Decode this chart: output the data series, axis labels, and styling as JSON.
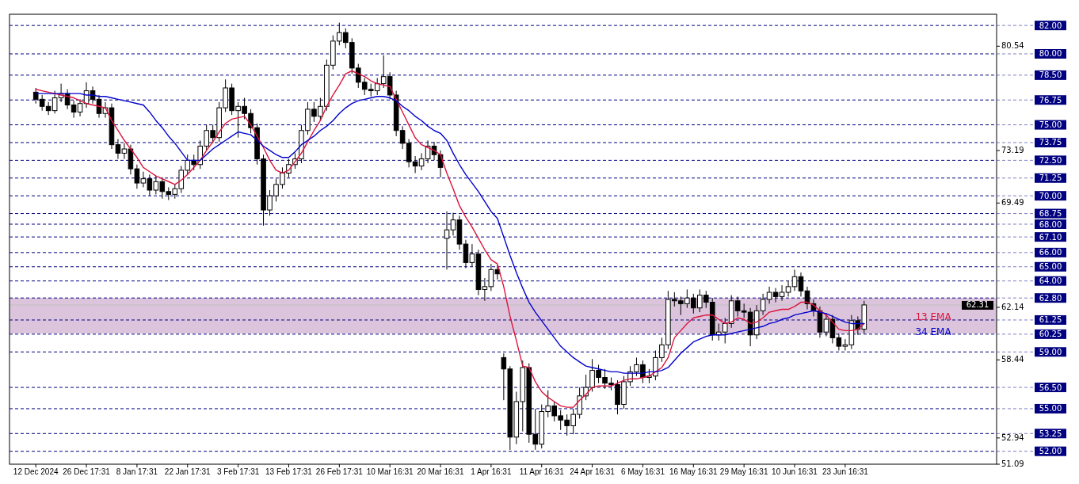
{
  "chart_data": {
    "type": "candlestick",
    "categories": [
      "12 Dec 2024",
      null,
      null,
      null,
      null,
      null,
      null,
      null,
      "26 Dec 17:31",
      null,
      null,
      null,
      null,
      null,
      null,
      null,
      "8 Jan 17:31",
      null,
      null,
      null,
      null,
      null,
      null,
      null,
      "22 Jan 17:31",
      null,
      null,
      null,
      null,
      null,
      null,
      null,
      "3 Feb 17:31",
      null,
      null,
      null,
      null,
      null,
      null,
      null,
      "13 Feb 17:31",
      null,
      null,
      null,
      null,
      null,
      null,
      null,
      "26 Feb 17:31",
      null,
      null,
      null,
      null,
      null,
      null,
      null,
      "10 Mar 16:31",
      null,
      null,
      null,
      null,
      null,
      null,
      null,
      "20 Mar 16:31",
      null,
      null,
      null,
      null,
      null,
      null,
      null,
      "1 Apr 16:31",
      null,
      null,
      null,
      null,
      null,
      null,
      null,
      "11 Apr 16:31",
      null,
      null,
      null,
      null,
      null,
      null,
      null,
      "24 Apr 16:31",
      null,
      null,
      null,
      null,
      null,
      null,
      null,
      "6 May 16:31",
      null,
      null,
      null,
      null,
      null,
      null,
      null,
      "16 May 16:31",
      null,
      null,
      null,
      null,
      null,
      null,
      null,
      "29 May 16:31",
      null,
      null,
      null,
      null,
      null,
      null,
      null,
      "10 Jun 16:31",
      null,
      null,
      null,
      null,
      null,
      null,
      null,
      "23 Jun 16:31",
      null,
      null,
      null
    ],
    "ohlc": [
      [
        77.3,
        77.6,
        76.5,
        76.8
      ],
      [
        76.8,
        77.1,
        76.0,
        76.3
      ],
      [
        76.3,
        76.6,
        75.7,
        76.0
      ],
      [
        76.0,
        77.4,
        75.8,
        76.9
      ],
      [
        76.9,
        77.9,
        76.6,
        77.2
      ],
      [
        77.2,
        77.5,
        76.1,
        76.4
      ],
      [
        76.4,
        76.7,
        75.5,
        75.9
      ],
      [
        75.9,
        76.8,
        75.6,
        76.5
      ],
      [
        76.5,
        78.0,
        76.2,
        77.4
      ],
      [
        77.4,
        77.7,
        76.5,
        76.8
      ],
      [
        76.8,
        77.1,
        75.5,
        75.8
      ],
      [
        75.8,
        76.6,
        75.5,
        76.2
      ],
      [
        76.2,
        76.5,
        73.3,
        73.6
      ],
      [
        73.6,
        74.0,
        72.6,
        73.0
      ],
      [
        73.0,
        73.7,
        72.6,
        73.3
      ],
      [
        73.3,
        73.6,
        71.5,
        71.9
      ],
      [
        71.9,
        72.2,
        70.5,
        70.9
      ],
      [
        70.9,
        71.7,
        70.6,
        71.2
      ],
      [
        71.2,
        71.5,
        70.0,
        70.4
      ],
      [
        70.4,
        71.4,
        70.1,
        71.0
      ],
      [
        71.0,
        71.3,
        69.8,
        70.3
      ],
      [
        70.3,
        70.6,
        69.7,
        70.1
      ],
      [
        70.1,
        70.8,
        69.8,
        70.5
      ],
      [
        70.5,
        72.1,
        70.2,
        71.8
      ],
      [
        71.8,
        72.9,
        71.5,
        72.5
      ],
      [
        72.5,
        72.9,
        71.8,
        72.2
      ],
      [
        72.2,
        73.9,
        71.9,
        73.5
      ],
      [
        73.5,
        75.0,
        73.2,
        74.6
      ],
      [
        74.6,
        75.0,
        73.7,
        74.1
      ],
      [
        74.1,
        76.6,
        73.8,
        76.2
      ],
      [
        76.2,
        78.2,
        75.9,
        77.6
      ],
      [
        77.6,
        77.9,
        75.7,
        76.0
      ],
      [
        76.0,
        76.6,
        74.1,
        76.3
      ],
      [
        76.3,
        76.9,
        75.4,
        75.8
      ],
      [
        75.8,
        76.1,
        74.4,
        74.8
      ],
      [
        74.8,
        75.1,
        72.2,
        72.6
      ],
      [
        72.6,
        72.9,
        67.9,
        69.0
      ],
      [
        69.0,
        70.4,
        68.6,
        70.0
      ],
      [
        70.0,
        71.2,
        69.6,
        70.8
      ],
      [
        70.8,
        72.0,
        70.5,
        71.6
      ],
      [
        71.6,
        72.6,
        71.3,
        72.2
      ],
      [
        72.2,
        73.0,
        71.9,
        72.6
      ],
      [
        72.6,
        75.0,
        72.3,
        74.6
      ],
      [
        74.6,
        76.6,
        74.3,
        76.1
      ],
      [
        76.1,
        76.6,
        75.2,
        75.6
      ],
      [
        75.6,
        76.9,
        75.3,
        76.3
      ],
      [
        76.3,
        79.6,
        76.0,
        79.2
      ],
      [
        79.2,
        81.3,
        78.9,
        80.9
      ],
      [
        80.9,
        82.2,
        80.6,
        81.5
      ],
      [
        81.5,
        81.8,
        80.4,
        80.8
      ],
      [
        80.8,
        81.1,
        78.6,
        79.0
      ],
      [
        79.0,
        79.3,
        77.6,
        78.0
      ],
      [
        78.0,
        78.3,
        77.1,
        77.5
      ],
      [
        77.5,
        77.9,
        77.0,
        77.4
      ],
      [
        77.4,
        78.3,
        77.1,
        77.9
      ],
      [
        77.9,
        79.9,
        77.6,
        78.4
      ],
      [
        78.4,
        78.7,
        76.8,
        77.1
      ],
      [
        77.1,
        77.4,
        74.2,
        74.6
      ],
      [
        74.6,
        74.9,
        73.3,
        73.7
      ],
      [
        73.7,
        74.0,
        72.0,
        72.4
      ],
      [
        72.4,
        72.8,
        71.6,
        72.1
      ],
      [
        72.1,
        73.0,
        71.8,
        72.6
      ],
      [
        72.6,
        73.9,
        72.3,
        73.5
      ],
      [
        73.5,
        73.8,
        72.5,
        72.9
      ],
      [
        72.9,
        73.2,
        71.3,
        72.0
      ],
      [
        67.0,
        68.9,
        64.8,
        67.6
      ],
      [
        67.6,
        68.8,
        67.2,
        68.3
      ],
      [
        68.3,
        68.6,
        66.2,
        66.6
      ],
      [
        66.6,
        66.9,
        64.9,
        65.3
      ],
      [
        65.3,
        66.6,
        65.0,
        65.9
      ],
      [
        65.9,
        66.2,
        63.0,
        63.4
      ],
      [
        63.4,
        64.2,
        62.6,
        63.6
      ],
      [
        63.6,
        65.2,
        63.3,
        64.8
      ],
      [
        64.8,
        65.1,
        64.1,
        64.5
      ],
      [
        58.6,
        58.9,
        55.6,
        57.8
      ],
      [
        57.8,
        58.0,
        52.1,
        53.0
      ],
      [
        53.0,
        56.2,
        52.5,
        55.5
      ],
      [
        55.5,
        58.4,
        53.4,
        57.9
      ],
      [
        57.9,
        58.2,
        52.6,
        53.2
      ],
      [
        53.2,
        55.0,
        52.1,
        52.5
      ],
      [
        52.5,
        55.3,
        52.2,
        54.8
      ],
      [
        54.8,
        56.3,
        54.4,
        55.2
      ],
      [
        55.2,
        55.5,
        54.1,
        54.5
      ],
      [
        54.5,
        54.9,
        53.5,
        54.2
      ],
      [
        54.2,
        54.6,
        53.1,
        53.8
      ],
      [
        53.8,
        55.0,
        53.2,
        54.6
      ],
      [
        54.6,
        56.5,
        54.3,
        55.9
      ],
      [
        55.9,
        57.4,
        55.6,
        56.5
      ],
      [
        56.5,
        58.5,
        56.2,
        57.7
      ],
      [
        57.7,
        58.1,
        56.8,
        57.2
      ],
      [
        57.2,
        57.8,
        56.4,
        56.8
      ],
      [
        56.8,
        57.2,
        56.3,
        56.7
      ],
      [
        56.7,
        57.0,
        54.6,
        55.3
      ],
      [
        55.3,
        57.3,
        55.0,
        56.9
      ],
      [
        56.9,
        58.0,
        56.6,
        57.6
      ],
      [
        57.6,
        58.6,
        57.3,
        58.1
      ],
      [
        58.1,
        58.4,
        56.8,
        57.2
      ],
      [
        57.2,
        57.8,
        56.8,
        57.3
      ],
      [
        57.3,
        59.1,
        57.0,
        58.6
      ],
      [
        58.6,
        60.0,
        58.3,
        59.5
      ],
      [
        59.5,
        63.3,
        59.2,
        62.7
      ],
      [
        62.7,
        63.2,
        62.2,
        62.6
      ],
      [
        62.6,
        62.9,
        61.6,
        62.4
      ],
      [
        62.4,
        63.4,
        62.1,
        62.8
      ],
      [
        62.8,
        63.1,
        61.7,
        62.1
      ],
      [
        62.1,
        63.4,
        61.8,
        63.0
      ],
      [
        63.0,
        63.3,
        62.1,
        62.5
      ],
      [
        62.5,
        62.8,
        59.8,
        60.2
      ],
      [
        60.2,
        61.0,
        59.8,
        60.4
      ],
      [
        60.4,
        61.4,
        59.6,
        61.0
      ],
      [
        61.0,
        63.0,
        60.7,
        62.6
      ],
      [
        62.6,
        62.9,
        61.5,
        61.9
      ],
      [
        61.9,
        62.4,
        61.4,
        61.8
      ],
      [
        61.8,
        62.1,
        59.4,
        60.2
      ],
      [
        60.2,
        62.3,
        59.9,
        61.9
      ],
      [
        61.9,
        63.1,
        61.6,
        62.7
      ],
      [
        62.7,
        63.6,
        62.4,
        63.2
      ],
      [
        63.2,
        63.5,
        62.5,
        62.9
      ],
      [
        62.9,
        63.7,
        62.6,
        63.2
      ],
      [
        63.2,
        64.0,
        62.9,
        63.6
      ],
      [
        63.6,
        64.8,
        63.3,
        64.3
      ],
      [
        64.3,
        64.6,
        62.9,
        63.3
      ],
      [
        63.3,
        63.6,
        62.0,
        62.4
      ],
      [
        62.4,
        62.7,
        61.5,
        61.9
      ],
      [
        61.9,
        62.2,
        60.0,
        60.4
      ],
      [
        60.4,
        61.7,
        60.1,
        61.3
      ],
      [
        61.3,
        61.6,
        59.6,
        60.0
      ],
      [
        60.0,
        60.3,
        59.1,
        59.4
      ],
      [
        59.4,
        59.9,
        59.1,
        59.5
      ],
      [
        59.5,
        61.6,
        59.2,
        61.2
      ],
      [
        61.2,
        61.5,
        60.2,
        60.6
      ],
      [
        60.6,
        62.6,
        60.3,
        62.31
      ]
    ],
    "series": [
      {
        "name": "13 EMA",
        "type": "line",
        "color": "#dc143c",
        "values": [
          77.5,
          77.4,
          77.3,
          77.2,
          77.1,
          77.0,
          76.9,
          76.7,
          76.5,
          76.4,
          76.3,
          76.2,
          75.3,
          74.6,
          73.9,
          73.3,
          72.7,
          72.0,
          71.7,
          71.4,
          71.2,
          71.0,
          70.8,
          71.1,
          71.5,
          72.0,
          72.5,
          73.2,
          73.8,
          74.5,
          75.1,
          75.4,
          75.5,
          75.6,
          75.0,
          74.2,
          73.4,
          72.5,
          71.8,
          71.6,
          71.8,
          72.4,
          73.0,
          73.8,
          74.6,
          75.3,
          76.3,
          77.1,
          77.8,
          78.6,
          78.8,
          78.6,
          78.4,
          78.1,
          77.9,
          77.8,
          77.7,
          76.8,
          75.9,
          75.0,
          74.1,
          73.6,
          73.4,
          73.2,
          72.9,
          71.6,
          70.5,
          69.3,
          68.5,
          67.8,
          67.0,
          66.2,
          65.5,
          65.2,
          63.6,
          61.5,
          59.8,
          58.0,
          57.9,
          56.9,
          56.2,
          55.8,
          55.5,
          55.2,
          55.1,
          55.1,
          55.6,
          56.0,
          56.5,
          56.6,
          56.6,
          56.6,
          56.8,
          57.0,
          57.1,
          57.1,
          57.2,
          57.3,
          57.6,
          57.9,
          58.6,
          60.0,
          60.5,
          61.0,
          61.4,
          61.5,
          61.6,
          61.6,
          61.3,
          61.0,
          61.1,
          61.4,
          61.3,
          61.0,
          61.1,
          61.4,
          61.8,
          61.9,
          62.0,
          62.0,
          62.2,
          62.5,
          62.5,
          62.3,
          61.9,
          61.6,
          61.1,
          60.6,
          60.5,
          60.5,
          60.6,
          61.0
        ]
      },
      {
        "name": "34 EMA",
        "type": "line",
        "color": "#0000cd",
        "values": [
          77.2,
          77.2,
          77.2,
          77.2,
          77.2,
          77.2,
          77.2,
          77.2,
          77.1,
          77.1,
          77.0,
          77.0,
          76.9,
          76.8,
          76.7,
          76.6,
          76.5,
          76.4,
          75.9,
          75.3,
          74.8,
          74.2,
          73.7,
          73.1,
          72.5,
          72.5,
          72.5,
          72.9,
          73.3,
          73.6,
          73.9,
          74.2,
          74.5,
          74.4,
          74.3,
          73.9,
          73.5,
          73.2,
          72.9,
          72.7,
          72.7,
          73.1,
          73.6,
          73.9,
          74.2,
          74.6,
          74.9,
          75.3,
          75.8,
          76.2,
          76.5,
          76.7,
          76.8,
          76.9,
          77.0,
          77.0,
          76.9,
          76.7,
          76.3,
          76.0,
          75.6,
          75.3,
          74.9,
          74.6,
          74.4,
          73.9,
          73.0,
          72.2,
          71.5,
          70.9,
          70.3,
          69.6,
          68.9,
          68.4,
          67.1,
          65.8,
          64.6,
          63.5,
          62.5,
          61.8,
          61.2,
          60.6,
          60.0,
          59.4,
          59.0,
          58.6,
          58.3,
          58.0,
          57.9,
          57.8,
          57.7,
          57.6,
          57.6,
          57.5,
          57.5,
          57.5,
          57.5,
          57.6,
          57.6,
          57.7,
          57.9,
          58.4,
          58.9,
          59.3,
          59.7,
          59.9,
          60.1,
          60.2,
          60.2,
          60.2,
          60.3,
          60.4,
          60.5,
          60.6,
          60.7,
          60.8,
          61.0,
          61.1,
          61.3,
          61.4,
          61.6,
          61.7,
          61.8,
          61.9,
          61.8,
          61.7,
          61.5,
          61.3,
          61.1,
          61.0,
          61.0,
          61.0
        ]
      }
    ],
    "ylim": [
      51.09,
      82.79
    ],
    "yticks": [
      51.09,
      52.94,
      58.44,
      62.14,
      69.49,
      73.19,
      80.54
    ],
    "ref_lines": [
      {
        "axis": "y",
        "value": 82.0,
        "label": "82.00",
        "color": "#000080",
        "line_style": "dashed"
      },
      {
        "axis": "y",
        "value": 80.0,
        "label": "80.00",
        "color": "#000080",
        "line_style": "dashed"
      },
      {
        "axis": "y",
        "value": 78.5,
        "label": "78.50",
        "color": "#000080",
        "line_style": "dashed"
      },
      {
        "axis": "y",
        "value": 76.75,
        "label": "76.75",
        "color": "#000080",
        "line_style": "dashed"
      },
      {
        "axis": "y",
        "value": 75.0,
        "label": "75.00",
        "color": "#000080",
        "line_style": "dashed"
      },
      {
        "axis": "y",
        "value": 73.75,
        "label": "73.75",
        "color": "#000080",
        "line_style": "dashed"
      },
      {
        "axis": "y",
        "value": 72.5,
        "label": "72.50",
        "color": "#000080",
        "line_style": "dashed"
      },
      {
        "axis": "y",
        "value": 71.25,
        "label": "71.25",
        "color": "#000080",
        "line_style": "dashed"
      },
      {
        "axis": "y",
        "value": 70.0,
        "label": "70.00",
        "color": "#000080",
        "line_style": "dashed"
      },
      {
        "axis": "y",
        "value": 68.75,
        "label": "68.75",
        "color": "#000080",
        "line_style": "dashed"
      },
      {
        "axis": "y",
        "value": 68.0,
        "label": "68.00",
        "color": "#000080",
        "line_style": "dashed"
      },
      {
        "axis": "y",
        "value": 67.1,
        "label": "67.10",
        "color": "#000080",
        "line_style": "dashed"
      },
      {
        "axis": "y",
        "value": 66.0,
        "label": "66.00",
        "color": "#000080",
        "line_style": "dashed"
      },
      {
        "axis": "y",
        "value": 65.0,
        "label": "65.00",
        "color": "#000080",
        "line_style": "dashed"
      },
      {
        "axis": "y",
        "value": 64.0,
        "label": "64.00",
        "color": "#000080",
        "line_style": "dashed"
      },
      {
        "axis": "y",
        "value": 62.8,
        "label": "62.80",
        "color": "#000080",
        "line_style": "dashed"
      },
      {
        "axis": "y",
        "value": 62.31,
        "label": "62.31",
        "color": "#c0c0c0",
        "line_style": "solid"
      },
      {
        "axis": "y",
        "value": 61.25,
        "label": "61.25",
        "color": "#000080",
        "line_style": "dashed"
      },
      {
        "axis": "y",
        "value": 60.25,
        "label": "60.25",
        "color": "#000080",
        "line_style": "dashed"
      },
      {
        "axis": "y",
        "value": 59.0,
        "label": "59.00",
        "color": "#000080",
        "line_style": "dashed"
      },
      {
        "axis": "y",
        "value": 56.5,
        "label": "56.50",
        "color": "#000080",
        "line_style": "dashed"
      },
      {
        "axis": "y",
        "value": 55.0,
        "label": "55.00",
        "color": "#000080",
        "line_style": "dashed"
      },
      {
        "axis": "y",
        "value": 53.25,
        "label": "53.25",
        "color": "#000080",
        "line_style": "dashed"
      },
      {
        "axis": "y",
        "value": 52.0,
        "label": "52.00",
        "color": "#000080",
        "line_style": "dashed"
      }
    ],
    "bands": [
      {
        "axis": "y",
        "from": 60.3,
        "to": 62.8,
        "color": "#d8bfd8"
      }
    ]
  }
}
